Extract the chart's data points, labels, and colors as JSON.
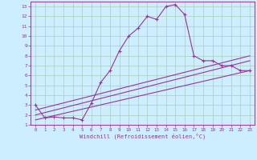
{
  "xlabel": "Windchill (Refroidissement éolien,°C)",
  "bg_color": "#cceeff",
  "grid_color": "#aaccbb",
  "line_color": "#993399",
  "xlim": [
    -0.5,
    23.5
  ],
  "ylim": [
    1,
    13.5
  ],
  "xticks": [
    0,
    1,
    2,
    3,
    4,
    5,
    6,
    7,
    8,
    9,
    10,
    11,
    12,
    13,
    14,
    15,
    16,
    17,
    18,
    19,
    20,
    21,
    22,
    23
  ],
  "yticks": [
    1,
    2,
    3,
    4,
    5,
    6,
    7,
    8,
    9,
    10,
    11,
    12,
    13
  ],
  "line1_x": [
    0,
    1,
    2,
    3,
    4,
    5,
    6,
    7,
    8,
    9,
    10,
    11,
    12,
    13,
    14,
    15,
    16,
    17,
    18,
    19,
    20,
    21,
    22,
    23
  ],
  "line1_y": [
    3.0,
    1.7,
    1.8,
    1.7,
    1.7,
    1.5,
    3.2,
    5.3,
    6.5,
    8.5,
    10.0,
    10.8,
    12.0,
    11.7,
    13.0,
    13.2,
    12.2,
    8.0,
    7.5,
    7.5,
    7.0,
    7.0,
    6.5,
    6.5
  ],
  "line2_x": [
    0,
    23
  ],
  "line2_y": [
    1.5,
    6.5
  ],
  "line3_x": [
    0,
    23
  ],
  "line3_y": [
    2.0,
    7.5
  ],
  "line4_x": [
    0,
    23
  ],
  "line4_y": [
    2.5,
    8.0
  ]
}
